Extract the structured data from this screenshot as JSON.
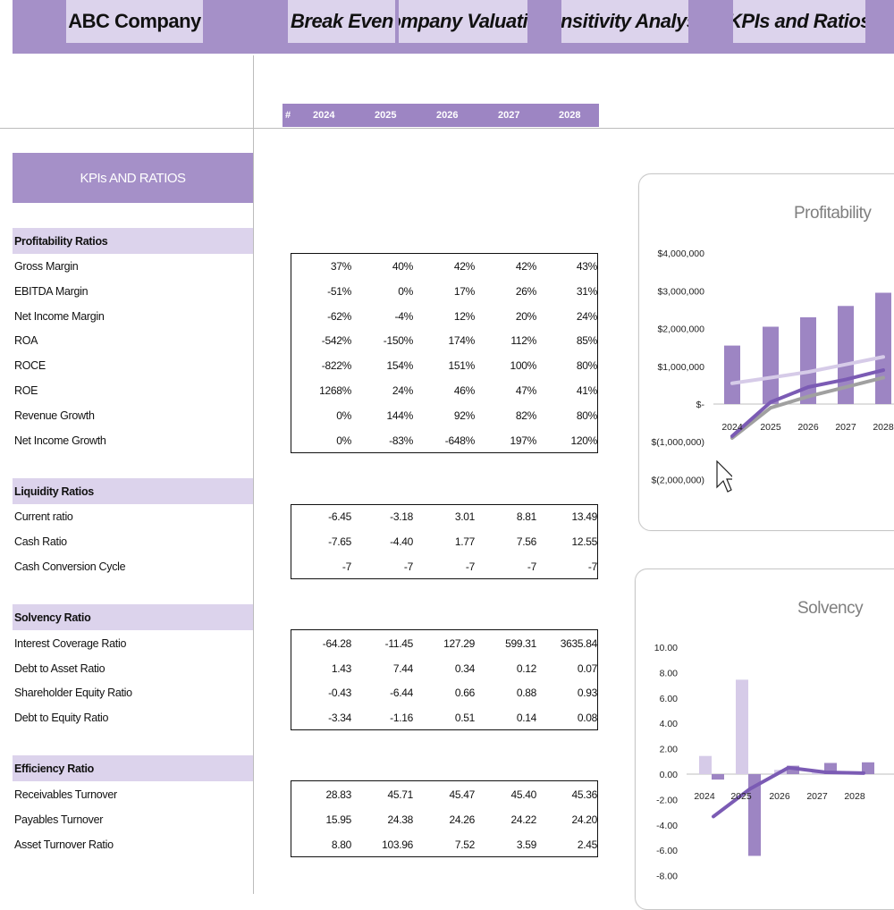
{
  "nav": {
    "tabs": [
      {
        "label": "ABC Company"
      },
      {
        "label": "Break Even Analy"
      },
      {
        "label": "Company Valuation"
      },
      {
        "label": "Sensitivity Analysis"
      },
      {
        "label": "KPIs and Ratios"
      }
    ]
  },
  "years": {
    "hash": "#",
    "list": [
      "2024",
      "2025",
      "2026",
      "2027",
      "2028"
    ]
  },
  "kpi_header": "KPIs AND RATIOS",
  "sections": [
    {
      "title": "Profitability Ratios",
      "rows": [
        {
          "label": "Gross Margin",
          "values": [
            "37%",
            "40%",
            "42%",
            "42%",
            "43%"
          ]
        },
        {
          "label": "EBITDA Margin",
          "values": [
            "-51%",
            "0%",
            "17%",
            "26%",
            "31%"
          ]
        },
        {
          "label": "Net Income Margin",
          "values": [
            "-62%",
            "-4%",
            "12%",
            "20%",
            "24%"
          ]
        },
        {
          "label": "ROA",
          "values": [
            "-542%",
            "-150%",
            "174%",
            "112%",
            "85%"
          ]
        },
        {
          "label": "ROCE",
          "values": [
            "-822%",
            "154%",
            "151%",
            "100%",
            "80%"
          ]
        },
        {
          "label": "ROE",
          "values": [
            "1268%",
            "24%",
            "46%",
            "47%",
            "41%"
          ]
        },
        {
          "label": "Revenue Growth",
          "values": [
            "0%",
            "144%",
            "92%",
            "82%",
            "80%"
          ]
        },
        {
          "label": "Net Income Growth",
          "values": [
            "0%",
            "-83%",
            "-648%",
            "197%",
            "120%"
          ]
        }
      ]
    },
    {
      "title": "Liquidity Ratios",
      "rows": [
        {
          "label": "Current ratio",
          "values": [
            "-6.45",
            "-3.18",
            "3.01",
            "8.81",
            "13.49"
          ]
        },
        {
          "label": "Cash Ratio",
          "values": [
            "-7.65",
            "-4.40",
            "1.77",
            "7.56",
            "12.55"
          ]
        },
        {
          "label": "Cash Conversion Cycle",
          "values": [
            "-7",
            "-7",
            "-7",
            "-7",
            "-7"
          ]
        }
      ]
    },
    {
      "title": "Solvency Ratio",
      "rows": [
        {
          "label": "Interest Coverage Ratio",
          "values": [
            "-64.28",
            "-11.45",
            "127.29",
            "599.31",
            "3635.84"
          ]
        },
        {
          "label": "Debt to Asset Ratio",
          "values": [
            "1.43",
            "7.44",
            "0.34",
            "0.12",
            "0.07"
          ]
        },
        {
          "label": "Shareholder Equity Ratio",
          "values": [
            "-0.43",
            "-6.44",
            "0.66",
            "0.88",
            "0.93"
          ]
        },
        {
          "label": "Debt to Equity Ratio",
          "values": [
            "-3.34",
            "-1.16",
            "0.51",
            "0.14",
            "0.08"
          ]
        }
      ]
    },
    {
      "title": "Efficiency Ratio",
      "rows": [
        {
          "label": "Receivables Turnover",
          "values": [
            "28.83",
            "45.71",
            "45.47",
            "45.40",
            "45.36"
          ]
        },
        {
          "label": "Payables Turnover",
          "values": [
            "15.95",
            "24.38",
            "24.26",
            "24.22",
            "24.20"
          ]
        },
        {
          "label": "Asset Turnover Ratio",
          "values": [
            "8.80",
            "103.96",
            "7.52",
            "3.59",
            "2.45"
          ]
        }
      ]
    }
  ],
  "chart_data": [
    {
      "type": "bar",
      "title": "Profitability",
      "categories": [
        "2024",
        "2025",
        "2026",
        "2027",
        "2028"
      ],
      "ylim": [
        -2000000,
        4000000
      ],
      "yticks": [
        {
          "value": 4000000,
          "label": "$4,000,000"
        },
        {
          "value": 3000000,
          "label": "$3,000,000"
        },
        {
          "value": 2000000,
          "label": "$2,000,000"
        },
        {
          "value": 1000000,
          "label": "$1,000,000"
        },
        {
          "value": 0,
          "label": "$-"
        },
        {
          "value": -1000000,
          "label": "$(1,000,000)"
        },
        {
          "value": -2000000,
          "label": "$(2,000,000)"
        }
      ],
      "bars": [
        1550000,
        2050000,
        2300000,
        2600000,
        2950000
      ],
      "lines": [
        {
          "color": "#d6cbe8",
          "values": [
            550000,
            700000,
            850000,
            1050000,
            1250000
          ]
        },
        {
          "color": "#a0a0a0",
          "values": [
            -900000,
            -100000,
            200000,
            450000,
            700000
          ]
        },
        {
          "color": "#7b5bb4",
          "values": [
            -850000,
            50000,
            450000,
            650000,
            900000
          ]
        }
      ],
      "colors": {
        "bar": "#9d85c3"
      }
    },
    {
      "type": "bar",
      "title": "Solvency",
      "categories": [
        "2024",
        "2025",
        "2026",
        "2027",
        "2028"
      ],
      "ylim": [
        -8,
        10
      ],
      "yticks": [
        {
          "value": 10,
          "label": "10.00"
        },
        {
          "value": 8,
          "label": "8.00"
        },
        {
          "value": 6,
          "label": "6.00"
        },
        {
          "value": 4,
          "label": "4.00"
        },
        {
          "value": 2,
          "label": "2.00"
        },
        {
          "value": 0,
          "label": "0.00"
        },
        {
          "value": -2,
          "label": "-2.00"
        },
        {
          "value": -4,
          "label": "-4.00"
        },
        {
          "value": -6,
          "label": "-6.00"
        },
        {
          "value": -8,
          "label": "-8.00"
        }
      ],
      "series": [
        {
          "color": "#d6cbe8",
          "values": [
            1.43,
            7.44,
            0.34,
            0.12,
            0.07
          ]
        },
        {
          "color": "#9d85c3",
          "values": [
            -0.43,
            -6.44,
            0.66,
            0.88,
            0.93
          ]
        }
      ],
      "line": {
        "color": "#7b5bb4",
        "values": [
          -3.34,
          -1.16,
          0.51,
          0.14,
          0.08
        ]
      }
    }
  ]
}
